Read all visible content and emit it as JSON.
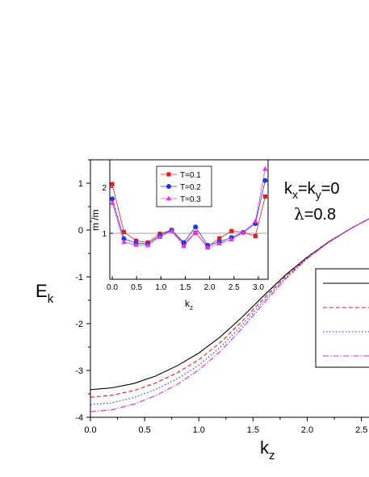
{
  "chart_data": [
    {
      "type": "line",
      "xlabel": "k",
      "xlabel_sub": "z",
      "ylabel": "E",
      "ylabel_sub": "k",
      "xlim": [
        0,
        2.57
      ],
      "ylim": [
        -4,
        1.5
      ],
      "xticks": [
        0.0,
        0.5,
        1.0,
        1.5,
        2.0,
        2.5
      ],
      "xtick_labels": [
        "0.0",
        "0.5",
        "1.0",
        "1.5",
        "2.0",
        "2.5"
      ],
      "yticks": [
        -4,
        -3,
        -2,
        -1,
        0,
        1
      ],
      "ytick_labels": [
        "-4",
        "-3",
        "-2",
        "-1",
        "0",
        "1"
      ],
      "grid": false,
      "legend_position": "right",
      "annotation": {
        "line1": {
          "a": "k",
          "a_sub": "x",
          "eq1": "=k",
          "b_sub": "y",
          "eq2": "=0"
        },
        "line2": {
          "sym": "λ",
          "eq": "=0.8"
        }
      },
      "series": [
        {
          "color": "#000000",
          "dash": "",
          "x": [
            0.0,
            0.2,
            0.4,
            0.6,
            0.8,
            1.0,
            1.2,
            1.4,
            1.6,
            1.8,
            2.0,
            2.2,
            2.4,
            2.57
          ],
          "values": [
            -3.41,
            -3.37,
            -3.28,
            -3.12,
            -2.9,
            -2.63,
            -2.28,
            -1.86,
            -1.4,
            -0.96,
            -0.58,
            -0.25,
            0.03,
            0.24
          ]
        },
        {
          "color": "#e0201b",
          "dash": "5,3",
          "x": [
            0.0,
            0.2,
            0.4,
            0.6,
            0.8,
            1.0,
            1.2,
            1.4,
            1.6,
            1.8,
            2.0,
            2.2,
            2.4,
            2.57
          ],
          "values": [
            -3.57,
            -3.53,
            -3.43,
            -3.27,
            -3.05,
            -2.77,
            -2.4,
            -1.95,
            -1.46,
            -0.99,
            -0.59,
            -0.25,
            0.03,
            0.24
          ]
        },
        {
          "color": "#1a36e0",
          "dash": "1.5,2.5",
          "x": [
            0.0,
            0.2,
            0.4,
            0.6,
            0.8,
            1.0,
            1.2,
            1.4,
            1.6,
            1.8,
            2.0,
            2.2,
            2.4,
            2.57
          ],
          "values": [
            -3.73,
            -3.69,
            -3.58,
            -3.41,
            -3.18,
            -2.89,
            -2.5,
            -2.03,
            -1.51,
            -1.02,
            -0.6,
            -0.26,
            0.03,
            0.24
          ]
        },
        {
          "color": "#cc33cc",
          "dash": "7,2,1.5,2",
          "x": [
            0.0,
            0.2,
            0.4,
            0.6,
            0.8,
            1.0,
            1.2,
            1.4,
            1.6,
            1.8,
            2.0,
            2.2,
            2.4,
            2.57
          ],
          "values": [
            -3.88,
            -3.84,
            -3.72,
            -3.54,
            -3.3,
            -2.99,
            -2.59,
            -2.1,
            -1.56,
            -1.05,
            -0.61,
            -0.26,
            0.03,
            0.24
          ]
        }
      ]
    },
    {
      "type": "line",
      "xlabel": "k",
      "xlabel_sub": "z",
      "ylabel": "m",
      "ylabel_sup": "*",
      "ylabel_suffix": "/m",
      "xlim": [
        -0.05,
        3.2
      ],
      "ylim": [
        0.0,
        2.6
      ],
      "xticks": [
        0.0,
        0.5,
        1.0,
        1.5,
        2.0,
        2.5,
        3.0
      ],
      "xtick_labels": [
        "0.0",
        "0.5",
        "1.0",
        "1.5",
        "2.0",
        "2.5",
        "3.0"
      ],
      "yticks": [
        1,
        2
      ],
      "ytick_labels": [
        "1",
        "2"
      ],
      "reference_line": 1,
      "grid": false,
      "legend_position": "top-center",
      "x": [
        0.0,
        0.24,
        0.49,
        0.73,
        0.98,
        1.22,
        1.47,
        1.71,
        1.96,
        2.2,
        2.45,
        2.69,
        2.94,
        3.14
      ],
      "series": [
        {
          "name": "T=0.1",
          "color": "#e0201b",
          "marker": "square",
          "values": [
            2.07,
            1.03,
            0.84,
            0.8,
            0.99,
            1.07,
            0.77,
            1.01,
            0.71,
            0.89,
            1.05,
            1.02,
            0.94,
            1.8
          ]
        },
        {
          "name": "T=0.2",
          "color": "#1a36e0",
          "marker": "circle",
          "values": [
            1.75,
            0.88,
            0.79,
            0.77,
            0.95,
            1.07,
            0.8,
            1.14,
            0.74,
            0.81,
            0.91,
            1.02,
            1.21,
            2.15
          ]
        },
        {
          "name": "T=0.3",
          "color": "#ee33ee",
          "marker": "triangle",
          "values": [
            1.66,
            0.81,
            0.75,
            0.74,
            0.92,
            1.05,
            0.72,
            1.02,
            0.69,
            0.78,
            0.87,
            1.02,
            1.26,
            2.4
          ]
        }
      ]
    }
  ]
}
